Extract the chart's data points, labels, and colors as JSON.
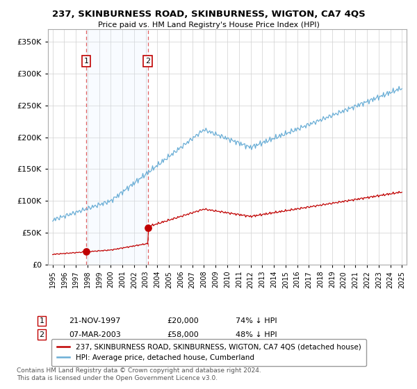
{
  "title": "237, SKINBURNESS ROAD, SKINBURNESS, WIGTON, CA7 4QS",
  "subtitle": "Price paid vs. HM Land Registry's House Price Index (HPI)",
  "legend_line1": "237, SKINBURNESS ROAD, SKINBURNESS, WIGTON, CA7 4QS (detached house)",
  "legend_line2": "HPI: Average price, detached house, Cumberland",
  "sale1_date": "21-NOV-1997",
  "sale1_price": 20000,
  "sale1_label": "74% ↓ HPI",
  "sale2_date": "07-MAR-2003",
  "sale2_price": 58000,
  "sale2_label": "48% ↓ HPI",
  "footnote": "Contains HM Land Registry data © Crown copyright and database right 2024.\nThis data is licensed under the Open Government Licence v3.0.",
  "hpi_color": "#6aaed6",
  "sale_color": "#c00000",
  "vline_color": "#e06060",
  "shade_color": "#ddeeff",
  "bg_color": "#ffffff",
  "grid_color": "#d0d0d0",
  "ylim": [
    0,
    370000
  ],
  "yticks": [
    0,
    50000,
    100000,
    150000,
    200000,
    250000,
    300000,
    350000
  ],
  "xlim_start": 1994.6,
  "xlim_end": 2025.4,
  "sale1_x": 1997.875,
  "sale2_x": 2003.167
}
